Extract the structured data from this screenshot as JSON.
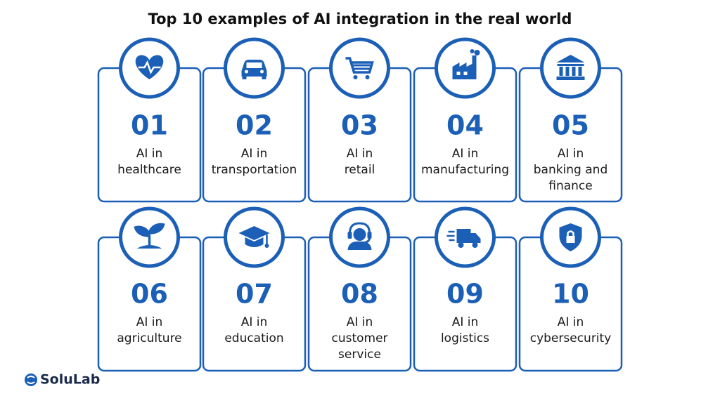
{
  "header": {
    "title": "Top 10 examples of AI integration in the real world"
  },
  "cards": [
    {
      "number": "01",
      "lines": [
        "AI in",
        "healthcare"
      ]
    },
    {
      "number": "02",
      "lines": [
        "AI in",
        "transportation"
      ]
    },
    {
      "number": "03",
      "lines": [
        "AI in",
        "retail"
      ]
    },
    {
      "number": "04",
      "lines": [
        "AI in",
        "manufacturing"
      ]
    },
    {
      "number": "05",
      "lines": [
        "AI in",
        "banking and",
        "finance"
      ]
    },
    {
      "number": "06",
      "lines": [
        "AI in",
        "agriculture"
      ]
    },
    {
      "number": "07",
      "lines": [
        "AI in",
        "education"
      ]
    },
    {
      "number": "08",
      "lines": [
        "AI in",
        "customer",
        "service"
      ]
    },
    {
      "number": "09",
      "lines": [
        "AI in",
        "logistics"
      ]
    },
    {
      "number": "10",
      "lines": [
        "AI in",
        "cybersecurity"
      ]
    }
  ],
  "footer": {
    "logo": "SoluLab"
  }
}
